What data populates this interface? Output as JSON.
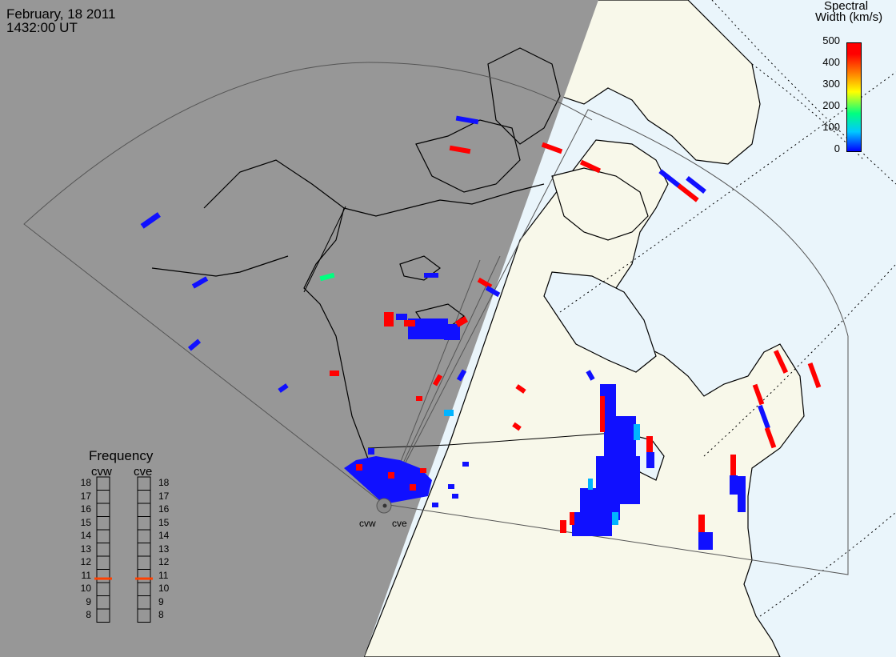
{
  "header": {
    "date": "February, 18 2011",
    "time": "1432:00 UT"
  },
  "colorbar": {
    "title_line1": "Spectral",
    "title_line2": "Width (km/s)",
    "ticks": [
      "500",
      "400",
      "300",
      "200",
      "100",
      "0"
    ],
    "min": 0,
    "max": 500,
    "palette": [
      "#0000ff",
      "#00c8ff",
      "#00ff80",
      "#ffff00",
      "#ff8000",
      "#ff0000"
    ]
  },
  "frequency_panel": {
    "title": "Frequency",
    "radars": [
      "cvw",
      "cve"
    ],
    "scale": [
      "18",
      "17",
      "16",
      "15",
      "14",
      "13",
      "12",
      "11",
      "10",
      "9",
      "8"
    ],
    "cvw_frequency": 10.8,
    "cve_frequency": 10.8,
    "indicator_color": "#ff4000"
  },
  "sites": {
    "cvw_label": "cvw",
    "cve_label": "cve"
  },
  "colors": {
    "night": "#979797",
    "day_land": "#f8f8ea",
    "day_ocean": "#eaf5fb",
    "coastline": "#000000",
    "fov": "#555555"
  }
}
